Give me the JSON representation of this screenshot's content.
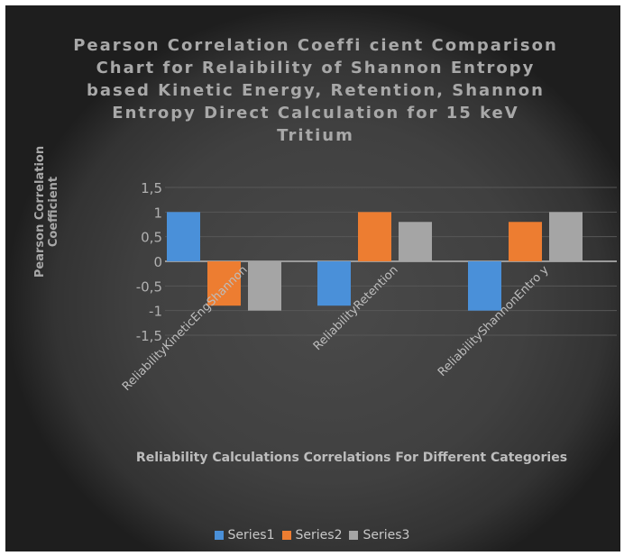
{
  "chart_data": {
    "type": "bar",
    "title": "Pearson Correlation Coeffi cient Comparison Chart for Relaibility of Shannon Entropy based Kinetic Energy, Retention, Shannon Entropy Direct Calculation for 15 keV Tritium",
    "xlabel": "Reliability Calculations Correlations For Different Categories",
    "ylabel": "Pearson Correlation Coefficient",
    "categories": [
      "ReliabilityKineticEngShannon",
      "ReliabilityRetention",
      "ReliabilityShannonEntro y"
    ],
    "series": [
      {
        "name": "Series1",
        "values": [
          1,
          -0.9,
          -1
        ],
        "color": "#4a90d9"
      },
      {
        "name": "Series2",
        "values": [
          -0.9,
          1,
          0.8
        ],
        "color": "#ed7d31"
      },
      {
        "name": "Series3",
        "values": [
          -1,
          0.8,
          1
        ],
        "color": "#a5a5a5"
      }
    ],
    "ylim": [
      -1.5,
      1.5
    ],
    "yticks": [
      "1,5",
      "1",
      "0,5",
      "0",
      "-0,5",
      "-1",
      "-1,5"
    ],
    "grid": true,
    "legend": "bottom"
  }
}
